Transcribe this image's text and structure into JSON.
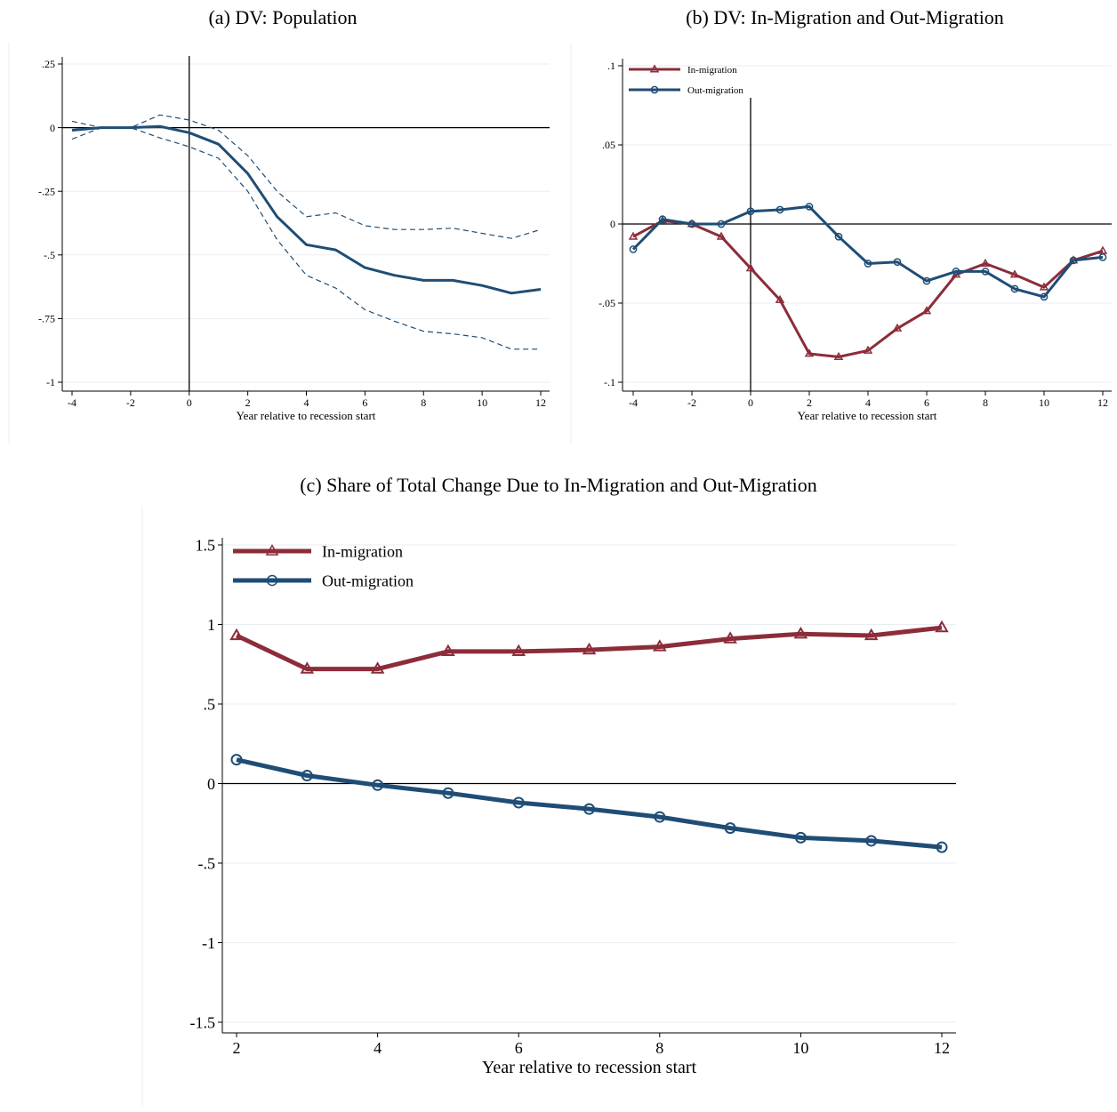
{
  "figure": {
    "panels": {
      "a": {
        "title": "(a) DV: Population"
      },
      "b": {
        "title": "(b) DV: In-Migration and Out-Migration"
      },
      "c": {
        "title": "(c) Share of Total Change Due to In-Migration and Out-Migration"
      }
    }
  },
  "colors": {
    "in_migration": "#8c2d3a",
    "out_migration": "#1f4d75",
    "population": "#1f4d75"
  },
  "chart_data": [
    {
      "id": "a",
      "type": "line",
      "title": "(a) DV: Population",
      "xlabel": "Year relative to recession start",
      "ylabel": "",
      "xlim": [
        -4,
        12
      ],
      "ylim": [
        -1,
        0.25
      ],
      "xticks": [
        -4,
        -2,
        0,
        2,
        4,
        6,
        8,
        10,
        12
      ],
      "xtick_labels": [
        "-4",
        "-2",
        "0",
        "2",
        "4",
        "6",
        "8",
        "10",
        "12"
      ],
      "yticks": [
        0.25,
        0,
        -0.25,
        -0.5,
        -0.75,
        -1
      ],
      "ytick_labels": [
        ".25",
        "0",
        "-.25",
        "-.5",
        "-.75",
        "-1"
      ],
      "x": [
        -4,
        -3,
        -2,
        -1,
        0,
        1,
        2,
        3,
        4,
        5,
        6,
        7,
        8,
        9,
        10,
        11,
        12
      ],
      "series": [
        {
          "role": "estimate",
          "values": [
            -0.01,
            0.0,
            0.0,
            0.005,
            -0.02,
            -0.065,
            -0.18,
            -0.35,
            -0.46,
            -0.48,
            -0.55,
            -0.58,
            -0.6,
            -0.6,
            -0.62,
            -0.65,
            -0.635
          ]
        },
        {
          "role": "upper_ci",
          "values": [
            0.025,
            0.0,
            0.0,
            0.05,
            0.03,
            -0.01,
            -0.11,
            -0.25,
            -0.35,
            -0.335,
            -0.385,
            -0.4,
            -0.4,
            -0.395,
            -0.415,
            -0.435,
            -0.4
          ]
        },
        {
          "role": "lower_ci",
          "values": [
            -0.045,
            0.0,
            0.0,
            -0.04,
            -0.075,
            -0.12,
            -0.25,
            -0.44,
            -0.58,
            -0.63,
            -0.715,
            -0.76,
            -0.8,
            -0.81,
            -0.825,
            -0.87,
            -0.87
          ]
        }
      ],
      "ci_start_x": [
        -4,
        -4,
        -4
      ],
      "ref_lines": {
        "x": 0,
        "y": 0
      }
    },
    {
      "id": "b",
      "type": "line",
      "title": "(b) DV: In-Migration and Out-Migration",
      "xlabel": "Year relative to recession start",
      "ylabel": "",
      "xlim": [
        -4,
        12
      ],
      "ylim": [
        -0.1,
        0.1
      ],
      "xticks": [
        -4,
        -2,
        0,
        2,
        4,
        6,
        8,
        10,
        12
      ],
      "xtick_labels": [
        "-4",
        "-2",
        "0",
        "2",
        "4",
        "6",
        "8",
        "10",
        "12"
      ],
      "yticks": [
        0.1,
        0.05,
        0,
        -0.05,
        -0.1
      ],
      "ytick_labels": [
        ".1",
        ".05",
        "0",
        "-.05",
        "-.1"
      ],
      "x": [
        -4,
        -3,
        -2,
        -1,
        0,
        1,
        2,
        3,
        4,
        5,
        6,
        7,
        8,
        9,
        10,
        11,
        12
      ],
      "series": [
        {
          "name": "In-migration",
          "marker": "triangle",
          "values": [
            -0.008,
            0.002,
            0.0,
            -0.008,
            -0.028,
            -0.048,
            -0.082,
            -0.084,
            -0.08,
            -0.066,
            -0.055,
            -0.032,
            -0.025,
            -0.032,
            -0.04,
            -0.023,
            -0.017
          ]
        },
        {
          "name": "Out-migration",
          "marker": "circle",
          "values": [
            -0.016,
            0.003,
            0.0,
            0.0,
            0.008,
            0.009,
            0.011,
            -0.008,
            -0.025,
            -0.024,
            -0.036,
            -0.03,
            -0.03,
            -0.041,
            -0.046,
            -0.023,
            -0.021
          ]
        }
      ],
      "legend": "top-left",
      "ref_lines": {
        "x": 0,
        "y": 0
      }
    },
    {
      "id": "c",
      "type": "line",
      "title": "(c) Share of Total Change Due to In-Migration and Out-Migration",
      "xlabel": "Year relative to recession start",
      "ylabel": "",
      "xlim": [
        2,
        12
      ],
      "ylim": [
        -1.5,
        1.5
      ],
      "xticks": [
        2,
        4,
        6,
        8,
        10,
        12
      ],
      "xtick_labels": [
        "2",
        "4",
        "6",
        "8",
        "10",
        "12"
      ],
      "yticks": [
        1.5,
        1,
        0.5,
        0,
        -0.5,
        -1,
        -1.5
      ],
      "ytick_labels": [
        "1.5",
        "1",
        ".5",
        "0",
        "-.5",
        "-1",
        "-1.5"
      ],
      "x": [
        2,
        3,
        4,
        5,
        6,
        7,
        8,
        9,
        10,
        11,
        12
      ],
      "series": [
        {
          "name": "In-migration",
          "marker": "triangle",
          "values": [
            0.93,
            0.72,
            0.72,
            0.83,
            0.83,
            0.84,
            0.86,
            0.91,
            0.94,
            0.93,
            0.98
          ]
        },
        {
          "name": "Out-migration",
          "marker": "circle",
          "values": [
            0.15,
            0.05,
            -0.01,
            -0.06,
            -0.12,
            -0.16,
            -0.21,
            -0.28,
            -0.34,
            -0.36,
            -0.4
          ]
        }
      ],
      "legend": "top-left",
      "ref_lines": {
        "y": 0
      }
    }
  ]
}
